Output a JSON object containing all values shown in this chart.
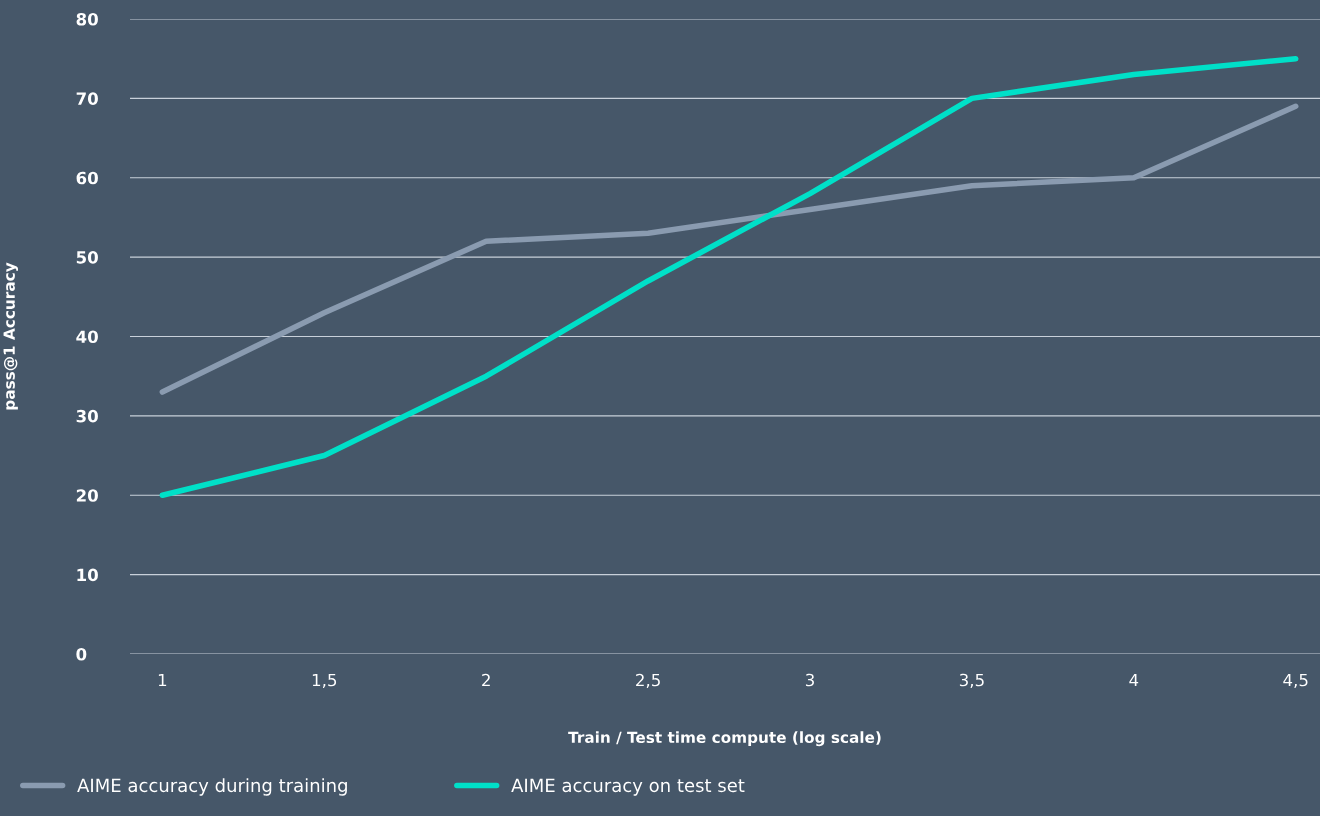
{
  "chart_data": {
    "type": "line",
    "xlabel": "Train / Test time compute (log scale)",
    "ylabel": "pass@1 Accuracy",
    "categories": [
      "1",
      "1,5",
      "2",
      "2,5",
      "3",
      "3,5",
      "4",
      "4,5"
    ],
    "series": [
      {
        "name": "AIME accuracy during training",
        "color": "#8a9bb0",
        "values": [
          33,
          43,
          52,
          53,
          56,
          59,
          60,
          69
        ]
      },
      {
        "name": "AIME accuracy on test set",
        "color": "#00e0c8",
        "values": [
          20,
          25,
          35,
          47,
          58,
          70,
          73,
          75
        ]
      }
    ],
    "ylim": [
      0,
      80
    ],
    "yticks": [
      0,
      10,
      20,
      30,
      40,
      50,
      60,
      70,
      80
    ],
    "grid": "y",
    "legend": "bottom left",
    "marker": "none",
    "line_style": "solid"
  }
}
